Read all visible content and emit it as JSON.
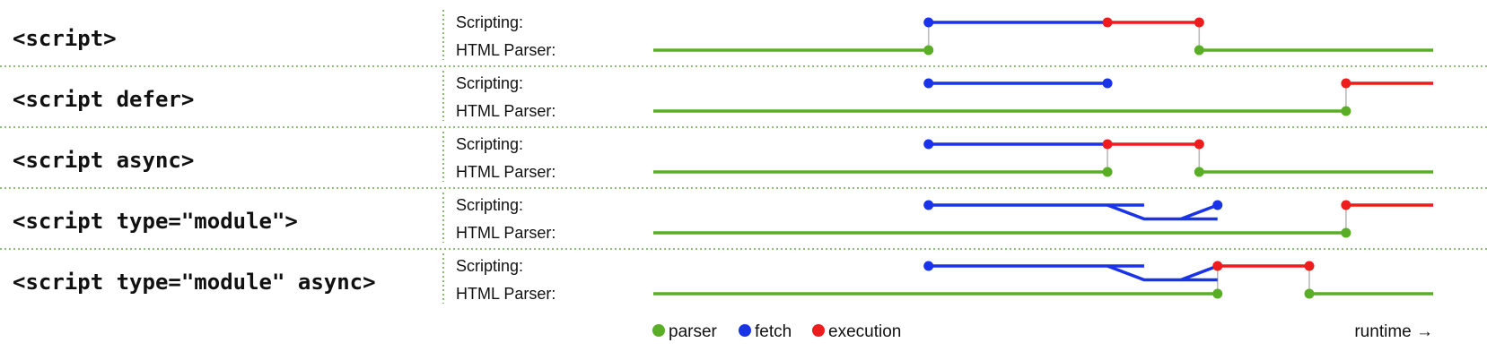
{
  "colors": {
    "parser": "#5aae25",
    "fetch": "#1a33e8",
    "execution": "#ee1c1c",
    "connector": "#bbbbbb",
    "separator": "#6aa84f"
  },
  "rows": [
    {
      "code": "<script>",
      "scripting_label": "Scripting:",
      "parser_label": "HTML Parser:",
      "segments": [
        {
          "lane": "parser",
          "kind": "parser",
          "from": 0,
          "to": 30
        },
        {
          "lane": "scripting",
          "kind": "fetch",
          "from": 30,
          "to": 49.5
        },
        {
          "lane": "scripting",
          "kind": "execution",
          "from": 49.5,
          "to": 59.5
        },
        {
          "lane": "parser",
          "kind": "parser",
          "from": 59.5,
          "to": 85
        }
      ],
      "dots": [
        {
          "lane": "scripting",
          "kind": "fetch",
          "at": 30
        },
        {
          "lane": "scripting",
          "kind": "execution",
          "at": 49.5
        },
        {
          "lane": "scripting",
          "kind": "execution",
          "at": 59.5
        },
        {
          "lane": "parser",
          "kind": "parser",
          "at": 30
        },
        {
          "lane": "parser",
          "kind": "parser",
          "at": 59.5
        }
      ],
      "connectors": [
        30,
        59.5
      ]
    },
    {
      "code": "<script defer>",
      "scripting_label": "Scripting:",
      "parser_label": "HTML Parser:",
      "segments": [
        {
          "lane": "parser",
          "kind": "parser",
          "from": 0,
          "to": 75.5
        },
        {
          "lane": "scripting",
          "kind": "fetch",
          "from": 30,
          "to": 49.5
        },
        {
          "lane": "scripting",
          "kind": "execution",
          "from": 75.5,
          "to": 85
        }
      ],
      "dots": [
        {
          "lane": "scripting",
          "kind": "fetch",
          "at": 30
        },
        {
          "lane": "scripting",
          "kind": "fetch",
          "at": 49.5
        },
        {
          "lane": "scripting",
          "kind": "execution",
          "at": 75.5
        },
        {
          "lane": "parser",
          "kind": "parser",
          "at": 75.5
        }
      ],
      "connectors": [
        75.5
      ]
    },
    {
      "code": "<script async>",
      "scripting_label": "Scripting:",
      "parser_label": "HTML Parser:",
      "segments": [
        {
          "lane": "parser",
          "kind": "parser",
          "from": 0,
          "to": 49.5
        },
        {
          "lane": "scripting",
          "kind": "fetch",
          "from": 30,
          "to": 49.5
        },
        {
          "lane": "scripting",
          "kind": "execution",
          "from": 49.5,
          "to": 59.5
        },
        {
          "lane": "parser",
          "kind": "parser",
          "from": 59.5,
          "to": 85
        }
      ],
      "dots": [
        {
          "lane": "scripting",
          "kind": "fetch",
          "at": 30
        },
        {
          "lane": "scripting",
          "kind": "execution",
          "at": 49.5
        },
        {
          "lane": "scripting",
          "kind": "execution",
          "at": 59.5
        },
        {
          "lane": "parser",
          "kind": "parser",
          "at": 49.5
        },
        {
          "lane": "parser",
          "kind": "parser",
          "at": 59.5
        }
      ],
      "connectors": [
        49.5,
        59.5
      ]
    },
    {
      "code": "<script type=\"module\">",
      "scripting_label": "Scripting:",
      "parser_label": "HTML Parser:",
      "segments": [
        {
          "lane": "parser",
          "kind": "parser",
          "from": 0,
          "to": 75.5
        },
        {
          "lane": "scripting",
          "kind": "fetch",
          "from": 30,
          "to": 53.5
        },
        {
          "lane": "scripting",
          "kind": "execution",
          "from": 75.5,
          "to": 85
        }
      ],
      "branch": {
        "kind": "fetch",
        "split": 49.5,
        "low_start": 53.5,
        "low_end": 57.5,
        "join": 61.5,
        "low_fraction": 0.5
      },
      "dots": [
        {
          "lane": "scripting",
          "kind": "fetch",
          "at": 30
        },
        {
          "lane": "scripting",
          "kind": "fetch",
          "at": 61.5
        },
        {
          "lane": "scripting",
          "kind": "execution",
          "at": 75.5
        },
        {
          "lane": "parser",
          "kind": "parser",
          "at": 75.5
        }
      ],
      "connectors": [
        75.5
      ]
    },
    {
      "code": "<script type=\"module\" async>",
      "scripting_label": "Scripting:",
      "parser_label": "HTML Parser:",
      "segments": [
        {
          "lane": "parser",
          "kind": "parser",
          "from": 0,
          "to": 61.5
        },
        {
          "lane": "scripting",
          "kind": "fetch",
          "from": 30,
          "to": 53.5
        },
        {
          "lane": "scripting",
          "kind": "execution",
          "from": 61.5,
          "to": 71.5
        },
        {
          "lane": "parser",
          "kind": "parser",
          "from": 71.5,
          "to": 85
        }
      ],
      "branch": {
        "kind": "fetch",
        "split": 49.5,
        "low_start": 53.5,
        "low_end": 57.5,
        "join": 61.5,
        "low_fraction": 0.5
      },
      "dots": [
        {
          "lane": "scripting",
          "kind": "fetch",
          "at": 30
        },
        {
          "lane": "scripting",
          "kind": "execution",
          "at": 61.5
        },
        {
          "lane": "scripting",
          "kind": "execution",
          "at": 71.5
        },
        {
          "lane": "parser",
          "kind": "parser",
          "at": 61.5
        },
        {
          "lane": "parser",
          "kind": "parser",
          "at": 71.5
        }
      ],
      "connectors": [
        61.5,
        71.5
      ]
    }
  ],
  "legend": {
    "items": [
      {
        "label": "parser",
        "kind": "parser"
      },
      {
        "label": "fetch",
        "kind": "fetch"
      },
      {
        "label": "execution",
        "kind": "execution"
      }
    ],
    "runtime_label": "runtime →"
  }
}
